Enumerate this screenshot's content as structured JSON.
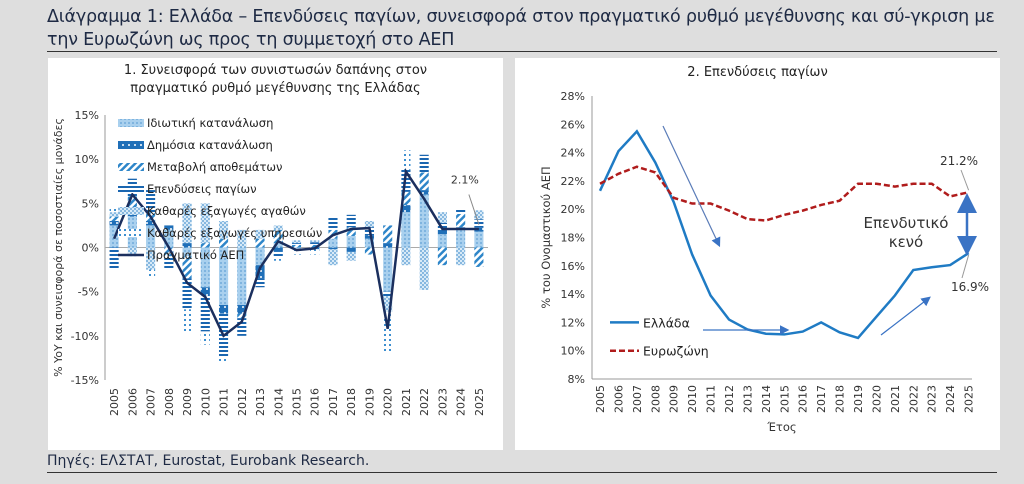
{
  "header": {
    "title": "Διάγραμμα 1: Ελλάδα – Επενδύσεις παγίων, συνεισφορά στον πραγματικό ρυθμό μεγέθυνσης και σύ-γκριση με την Ευρωζώνη ως προς τη συμμετοχή στο ΑΕΠ"
  },
  "footer": {
    "source": "Πηγές: ΕΛΣΤΑΤ, Eurostat, Eurobank Research."
  },
  "chart_data": [
    {
      "type": "bar",
      "stacked": true,
      "title": "1. Συνεισφορά των συνιστωσών δαπάνης στον πραγματικό ρυθμό μεγέθυνσης της Ελλάδας",
      "ylabel": "% YoY και συνεισφορά σε ποσοστιαίες μονάδες",
      "ylim": [
        -15,
        15
      ],
      "yticks": [
        "-15%",
        "-10%",
        "-5%",
        "0%",
        "5%",
        "10%",
        "15%"
      ],
      "legend_position": "top-left",
      "categories": [
        "2005",
        "2006",
        "2007",
        "2008",
        "2009",
        "2010",
        "2011",
        "2012",
        "2013",
        "2014",
        "2015",
        "2016",
        "2017",
        "2018",
        "2019",
        "2020",
        "2021",
        "2022",
        "2023",
        "2024",
        "2025"
      ],
      "series": [
        {
          "name": "Ιδιωτική κατανάλωση",
          "color": "#8fbfe3",
          "values": [
            2.5,
            3.5,
            2.5,
            2.0,
            -1.0,
            -4.5,
            -6.5,
            -6.5,
            -2.0,
            0.5,
            -0.2,
            0.0,
            1.0,
            1.3,
            1.0,
            -5.0,
            4.0,
            6.0,
            1.5,
            2.0,
            1.8
          ]
        },
        {
          "name": "Δημόσια κατανάλωση",
          "color": "#1f6fb8",
          "values": [
            0.5,
            0.8,
            0.5,
            0.5,
            0.5,
            -1.0,
            -1.0,
            -1.0,
            -1.5,
            -0.5,
            0.0,
            -0.2,
            -0.2,
            -0.5,
            0.4,
            0.5,
            0.8,
            0.5,
            0.5,
            0.3,
            0.5
          ]
        },
        {
          "name": "Μεταβολή αποθεμάτων",
          "color": "#2e86c9",
          "values": [
            0.5,
            1.5,
            1.0,
            -1.0,
            -2.5,
            0.5,
            1.0,
            -0.5,
            1.0,
            1.5,
            0.3,
            0.3,
            1.0,
            1.0,
            -0.8,
            2.0,
            1.5,
            2.0,
            -2.0,
            1.5,
            -2.2
          ]
        },
        {
          "name": "Επενδύσεις παγίων",
          "color": "#1a66b0",
          "values": [
            -2.5,
            2.0,
            2.5,
            -1.5,
            -3.5,
            -4.0,
            -5.0,
            -2.0,
            -1.0,
            -0.5,
            0.2,
            0.3,
            1.5,
            1.4,
            0.9,
            -0.5,
            2.5,
            2.0,
            0.8,
            0.5,
            0.9
          ]
        },
        {
          "name": "Καθαρές εξαγωγές αγαθών",
          "color": "#6aa8d8",
          "values": [
            0.5,
            -1.0,
            -2.5,
            0.0,
            4.5,
            4.5,
            2.0,
            2.0,
            1.0,
            0.5,
            0.3,
            0.2,
            -1.8,
            -1.0,
            0.7,
            -1.8,
            -2.0,
            -4.8,
            1.2,
            -2.0,
            1.0
          ]
        },
        {
          "name": "Καθαρές εξαγωγές υπηρεσιών",
          "color": "#3d8fd0",
          "values": [
            0.5,
            0.2,
            -1.0,
            0.0,
            -2.5,
            -1.5,
            -0.5,
            0.0,
            0.0,
            -0.5,
            -0.6,
            -0.6,
            0.0,
            0.0,
            0.0,
            -4.5,
            2.2,
            0.0,
            0.0,
            0.0,
            0.0
          ]
        },
        {
          "name": "Πραγματικό ΑΕΠ",
          "type": "line",
          "color": "#1b2f5e",
          "values": [
            1.0,
            6.0,
            3.5,
            0.0,
            -4.0,
            -5.6,
            -10.0,
            -8.4,
            -2.3,
            0.7,
            -0.3,
            -0.1,
            1.4,
            2.1,
            2.2,
            -9.2,
            8.6,
            5.5,
            2.1,
            2.1,
            2.1
          ]
        }
      ],
      "annotations": [
        {
          "text": "2.1%",
          "category": "2025"
        }
      ]
    },
    {
      "type": "line",
      "title": "2. Επενδύσεις παγίων",
      "ylabel": "% του Ονομαστικού ΑΕΠ",
      "xlabel": "Έτος",
      "ylim": [
        8,
        28
      ],
      "yticks": [
        "8%",
        "10%",
        "12%",
        "14%",
        "16%",
        "18%",
        "20%",
        "22%",
        "24%",
        "26%",
        "28%"
      ],
      "legend_position": "bottom-left",
      "categories": [
        "2005",
        "2006",
        "2007",
        "2008",
        "2009",
        "2010",
        "2011",
        "2012",
        "2013",
        "2014",
        "2015",
        "2016",
        "2017",
        "2018",
        "2019",
        "2020",
        "2021",
        "2022",
        "2023",
        "2024",
        "2025"
      ],
      "series": [
        {
          "name": "Ελλάδα",
          "color": "#1f7bc4",
          "style": "solid",
          "values": [
            21.3,
            24.1,
            25.5,
            23.3,
            20.5,
            16.8,
            13.9,
            12.2,
            11.5,
            11.2,
            11.15,
            11.35,
            12.0,
            11.3,
            10.9,
            12.4,
            13.9,
            15.7,
            15.9,
            16.05,
            16.9
          ]
        },
        {
          "name": "Ευρωζώνη",
          "color": "#b01c1c",
          "style": "dashed",
          "values": [
            21.8,
            22.5,
            23.0,
            22.6,
            20.8,
            20.4,
            20.4,
            19.9,
            19.3,
            19.2,
            19.6,
            19.9,
            20.3,
            20.6,
            21.8,
            21.8,
            21.6,
            21.8,
            21.8,
            20.9,
            21.2
          ]
        }
      ],
      "annotations": [
        {
          "text": "21.2%"
        },
        {
          "text": "16.9%"
        },
        {
          "text": "Επενδυτικό κενό"
        }
      ]
    }
  ]
}
